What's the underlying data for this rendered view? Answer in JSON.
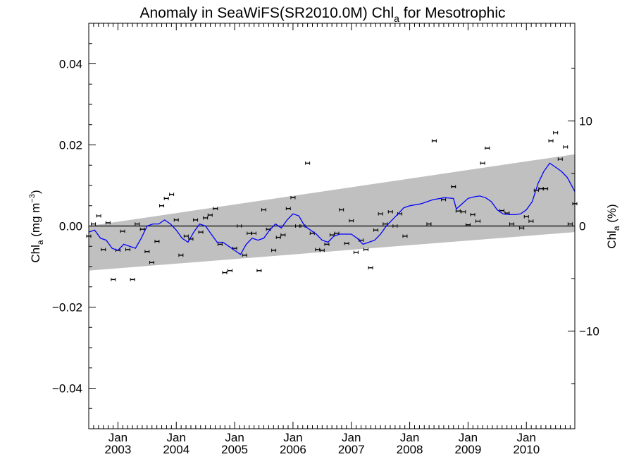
{
  "chart_data": {
    "type": "line",
    "title": "Anomaly in SeaWiFS(SR2010.0M) Chl",
    "title_sub": "a",
    "title_suffix": " for Mesotrophic",
    "ylabel_main": "Chl",
    "ylabel_sub": "a",
    "ylabel_unit": " (mg m",
    "ylabel_sup": "−3",
    "ylabel_close": ")",
    "y2label_main": "Chl",
    "y2label_sub": "a",
    "y2label_unit": " (%)",
    "xlim": [
      2002.5,
      2010.83
    ],
    "ylim": [
      -0.05,
      0.05
    ],
    "y2lim": [
      -19.3,
      19.3
    ],
    "x_ticks": [
      {
        "x": 2003.0,
        "month": "Jan",
        "year": "2003"
      },
      {
        "x": 2004.0,
        "month": "Jan",
        "year": "2004"
      },
      {
        "x": 2005.0,
        "month": "Jan",
        "year": "2005"
      },
      {
        "x": 2006.0,
        "month": "Jan",
        "year": "2006"
      },
      {
        "x": 2007.0,
        "month": "Jan",
        "year": "2007"
      },
      {
        "x": 2008.0,
        "month": "Jan",
        "year": "2008"
      },
      {
        "x": 2009.0,
        "month": "Jan",
        "year": "2009"
      },
      {
        "x": 2010.0,
        "month": "Jan",
        "year": "2010"
      }
    ],
    "y_ticks": [
      {
        "value": 0.04,
        "label": "0.04"
      },
      {
        "value": 0.02,
        "label": "0.02"
      },
      {
        "value": 0.0,
        "label": "0.00"
      },
      {
        "value": -0.02,
        "label": "−0.02"
      },
      {
        "value": -0.04,
        "label": "−0.04"
      }
    ],
    "y2_ticks": [
      {
        "value": 10,
        "label": "10"
      },
      {
        "value": 0,
        "label": "0"
      },
      {
        "value": -10,
        "label": "−10"
      }
    ],
    "zero_line": 0.0,
    "band": {
      "color": "#c0c0c0",
      "x": [
        2002.5,
        2010.83
      ],
      "upper": [
        0.0,
        0.0177
      ],
      "lower": [
        -0.011,
        -0.0015
      ]
    },
    "series": [
      {
        "kind": "line",
        "color": "#0000ff",
        "x": [
          2002.5,
          2002.6,
          2002.7,
          2002.8,
          2002.9,
          2003.0,
          2003.1,
          2003.2,
          2003.3,
          2003.4,
          2003.5,
          2003.6,
          2003.7,
          2003.8,
          2003.9,
          2004.0,
          2004.1,
          2004.2,
          2004.3,
          2004.4,
          2004.5,
          2004.6,
          2004.7,
          2004.8,
          2004.9,
          2005.0,
          2005.1,
          2005.2,
          2005.3,
          2005.4,
          2005.5,
          2005.6,
          2005.7,
          2005.8,
          2005.9,
          2006.0,
          2006.1,
          2006.2,
          2006.3,
          2006.4,
          2006.5,
          2006.6,
          2006.7,
          2006.8,
          2006.9,
          2007.0,
          2007.1,
          2007.2,
          2007.3,
          2007.4,
          2007.5,
          2007.6,
          2007.7,
          2007.8,
          2007.9,
          2008.0,
          2008.2,
          2008.4,
          2008.6,
          2008.75,
          2008.8,
          2008.9,
          2009.0,
          2009.1,
          2009.2,
          2009.3,
          2009.4,
          2009.5,
          2009.6,
          2009.7,
          2009.8,
          2009.9,
          2010.0,
          2010.1,
          2010.2,
          2010.3,
          2010.4,
          2010.5,
          2010.6,
          2010.7,
          2010.83
        ],
        "y": [
          -0.0015,
          -0.001,
          -0.003,
          -0.0035,
          -0.0055,
          -0.006,
          -0.0045,
          -0.005,
          -0.0055,
          -0.003,
          0.0,
          0.0005,
          0.0005,
          0.0015,
          0.0005,
          -0.001,
          -0.003,
          -0.004,
          -0.0015,
          0.0005,
          0.0,
          -0.002,
          -0.004,
          -0.004,
          -0.005,
          -0.006,
          -0.007,
          -0.0045,
          -0.003,
          -0.0035,
          -0.003,
          -0.001,
          0.0005,
          -0.0005,
          0.0015,
          0.003,
          0.0025,
          0.0,
          -0.001,
          -0.002,
          -0.0035,
          -0.004,
          -0.0025,
          -0.002,
          -0.002,
          -0.002,
          -0.003,
          -0.0045,
          -0.004,
          -0.0035,
          -0.002,
          0.0,
          0.0015,
          0.003,
          0.0045,
          0.005,
          0.0055,
          0.0065,
          0.007,
          0.0068,
          0.0042,
          0.0055,
          0.0068,
          0.0072,
          0.0074,
          0.007,
          0.006,
          0.004,
          0.003,
          0.0028,
          0.0028,
          0.003,
          0.004,
          0.006,
          0.0105,
          0.0135,
          0.0155,
          0.0145,
          0.0135,
          0.012,
          0.0085
        ]
      },
      {
        "kind": "scatter_errorbar",
        "color": "#000000",
        "x": [
          2002.5,
          2002.58,
          2002.67,
          2002.75,
          2002.83,
          2002.92,
          2003.0,
          2003.08,
          2003.17,
          2003.25,
          2003.33,
          2003.42,
          2003.5,
          2003.58,
          2003.67,
          2003.75,
          2003.83,
          2003.92,
          2004.0,
          2004.08,
          2004.17,
          2004.25,
          2004.33,
          2004.42,
          2004.5,
          2004.58,
          2004.67,
          2004.75,
          2004.83,
          2004.92,
          2005.0,
          2005.08,
          2005.17,
          2005.25,
          2005.33,
          2005.42,
          2005.5,
          2005.58,
          2005.67,
          2005.75,
          2005.83,
          2005.92,
          2006.0,
          2006.08,
          2006.17,
          2006.25,
          2006.33,
          2006.42,
          2006.5,
          2006.58,
          2006.67,
          2006.75,
          2006.83,
          2006.92,
          2007.0,
          2007.08,
          2007.17,
          2007.25,
          2007.33,
          2007.42,
          2007.5,
          2007.58,
          2007.67,
          2007.75,
          2007.83,
          2007.92,
          2008.33,
          2008.42,
          2008.58,
          2008.75,
          2008.83,
          2008.92,
          2009.0,
          2009.08,
          2009.17,
          2009.25,
          2009.33,
          2009.58,
          2009.67,
          2009.75,
          2009.92,
          2010.0,
          2010.08,
          2010.17,
          2010.25,
          2010.33,
          2010.42,
          2010.5,
          2010.58,
          2010.67,
          2010.75,
          2010.83
        ],
        "y": [
          -0.0025,
          0.0005,
          0.0025,
          -0.0058,
          0.0008,
          -0.0132,
          -0.006,
          -0.0013,
          -0.0058,
          -0.0132,
          0.0005,
          -0.0008,
          -0.0063,
          -0.009,
          -0.0038,
          0.005,
          0.0068,
          0.0078,
          0.0015,
          -0.0072,
          -0.0025,
          -0.0032,
          0.0015,
          -0.0015,
          0.002,
          0.0027,
          0.0043,
          -0.0045,
          -0.0115,
          -0.011,
          -0.0055,
          0.0,
          -0.0072,
          -0.0018,
          -0.0018,
          -0.011,
          0.004,
          -0.0008,
          -0.006,
          -0.0028,
          -0.0022,
          0.0043,
          0.007,
          0.0,
          0.0,
          0.0155,
          -0.0018,
          -0.0058,
          -0.006,
          -0.0045,
          -0.0022,
          -0.0018,
          0.004,
          -0.0043,
          0.0013,
          -0.0065,
          -0.0035,
          -0.0058,
          -0.0103,
          -0.001,
          0.003,
          0.0005,
          0.0035,
          0.0,
          0.003,
          -0.0025,
          0.0005,
          0.021,
          0.0065,
          0.0097,
          0.0037,
          0.0035,
          0.0003,
          0.0028,
          0.0012,
          0.0155,
          0.0192,
          0.0038,
          0.0032,
          0.0005,
          -0.0005,
          0.0023,
          0.0012,
          0.0088,
          0.0092,
          0.0092,
          0.021,
          0.023,
          0.0165,
          0.0195,
          0.0005,
          0.0055
        ],
        "err": 0.0004
      }
    ]
  }
}
